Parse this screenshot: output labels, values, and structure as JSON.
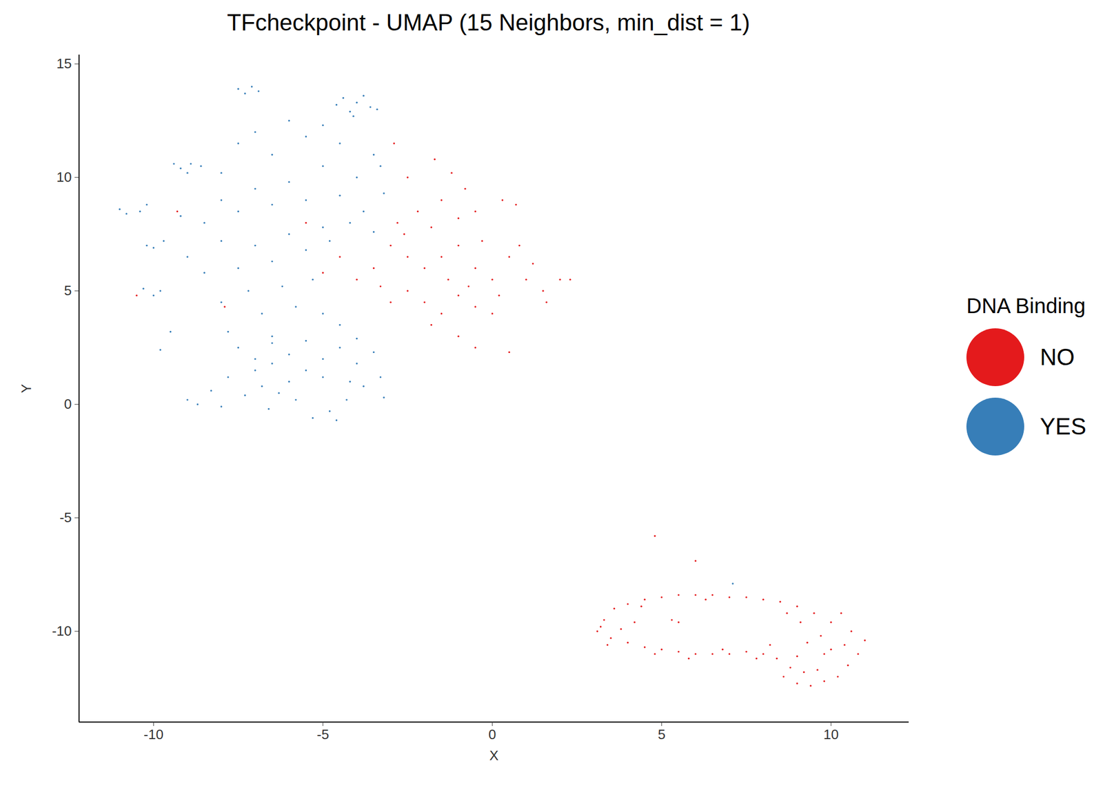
{
  "chart_data": {
    "type": "scatter",
    "title": "TFcheckpoint - UMAP (15 Neighbors, min_dist = 1)",
    "x_label": "X",
    "y_label": "Y",
    "legend_title": "DNA Binding",
    "legend": "right",
    "grid": false,
    "xlim": [
      -12.2,
      12.3
    ],
    "ylim": [
      -14.0,
      15.4
    ],
    "xticks": [
      -10,
      -5,
      0,
      5,
      10
    ],
    "yticks": [
      -10,
      -5,
      0,
      5,
      10,
      15
    ],
    "series": [
      {
        "name": "NO",
        "color": "#E41A1C",
        "points": [
          [
            -3.0,
            7.0
          ],
          [
            -2.5,
            6.5
          ],
          [
            -2.0,
            6.0
          ],
          [
            -1.5,
            6.5
          ],
          [
            -1.0,
            7.0
          ],
          [
            -0.5,
            6.0
          ],
          [
            0.0,
            5.5
          ],
          [
            0.5,
            6.5
          ],
          [
            1.0,
            5.5
          ],
          [
            1.5,
            5.0
          ],
          [
            2.0,
            5.5
          ],
          [
            2.3,
            5.5
          ],
          [
            -2.8,
            8.0
          ],
          [
            -2.2,
            8.5
          ],
          [
            -1.5,
            9.0
          ],
          [
            -1.0,
            8.2
          ],
          [
            -0.5,
            8.5
          ],
          [
            0.3,
            9.0
          ],
          [
            0.7,
            8.8
          ],
          [
            -2.5,
            10.0
          ],
          [
            -1.7,
            10.8
          ],
          [
            -1.2,
            10.2
          ],
          [
            -0.8,
            9.5
          ],
          [
            -2.9,
            11.5
          ],
          [
            -3.5,
            6.0
          ],
          [
            -4.0,
            5.5
          ],
          [
            -4.5,
            6.5
          ],
          [
            -5.0,
            5.8
          ],
          [
            -5.5,
            8.0
          ],
          [
            -2.5,
            5.0
          ],
          [
            -2.0,
            4.5
          ],
          [
            -1.5,
            4.0
          ],
          [
            -1.0,
            4.8
          ],
          [
            -0.5,
            4.3
          ],
          [
            0.0,
            4.0
          ],
          [
            -1.0,
            3.0
          ],
          [
            -0.5,
            2.5
          ],
          [
            0.5,
            2.3
          ],
          [
            -1.8,
            3.5
          ],
          [
            -3.0,
            4.5
          ],
          [
            -1.3,
            5.5
          ],
          [
            -0.3,
            7.2
          ],
          [
            0.8,
            7.0
          ],
          [
            1.2,
            6.2
          ],
          [
            -3.3,
            5.2
          ],
          [
            -2.6,
            7.5
          ],
          [
            -1.8,
            7.8
          ],
          [
            -0.7,
            5.2
          ],
          [
            0.2,
            4.8
          ],
          [
            1.6,
            4.5
          ],
          [
            -9.3,
            8.5
          ],
          [
            -10.5,
            4.8
          ],
          [
            -7.9,
            4.3
          ],
          [
            3.3,
            -9.5
          ],
          [
            3.6,
            -9.0
          ],
          [
            4.0,
            -8.8
          ],
          [
            4.5,
            -8.6
          ],
          [
            5.0,
            -8.5
          ],
          [
            5.5,
            -8.4
          ],
          [
            6.0,
            -8.4
          ],
          [
            6.5,
            -8.4
          ],
          [
            7.0,
            -8.5
          ],
          [
            7.5,
            -8.5
          ],
          [
            8.0,
            -8.6
          ],
          [
            8.5,
            -8.7
          ],
          [
            9.0,
            -8.9
          ],
          [
            9.5,
            -9.2
          ],
          [
            10.0,
            -9.6
          ],
          [
            10.3,
            -9.2
          ],
          [
            10.6,
            -10.0
          ],
          [
            11.0,
            -10.4
          ],
          [
            10.8,
            -11.0
          ],
          [
            10.5,
            -11.5
          ],
          [
            10.2,
            -12.0
          ],
          [
            9.8,
            -12.2
          ],
          [
            9.4,
            -12.4
          ],
          [
            9.0,
            -12.3
          ],
          [
            8.6,
            -12.0
          ],
          [
            8.8,
            -11.6
          ],
          [
            9.2,
            -11.8
          ],
          [
            9.6,
            -11.7
          ],
          [
            9.0,
            -11.1
          ],
          [
            8.4,
            -11.2
          ],
          [
            8.0,
            -11.0
          ],
          [
            7.5,
            -10.9
          ],
          [
            7.0,
            -11.0
          ],
          [
            6.5,
            -11.0
          ],
          [
            6.0,
            -11.0
          ],
          [
            5.5,
            -10.9
          ],
          [
            5.0,
            -10.8
          ],
          [
            4.5,
            -10.7
          ],
          [
            4.0,
            -10.5
          ],
          [
            3.5,
            -10.3
          ],
          [
            3.1,
            -10.0
          ],
          [
            3.4,
            -10.6
          ],
          [
            3.8,
            -9.9
          ],
          [
            4.2,
            -9.6
          ],
          [
            3.2,
            -9.8
          ],
          [
            4.8,
            -11.0
          ],
          [
            5.8,
            -11.2
          ],
          [
            6.8,
            -10.8
          ],
          [
            7.8,
            -11.2
          ],
          [
            8.2,
            -10.6
          ],
          [
            9.3,
            -10.5
          ],
          [
            9.7,
            -10.2
          ],
          [
            10.0,
            -10.8
          ],
          [
            10.4,
            -10.6
          ],
          [
            9.8,
            -11.0
          ],
          [
            9.1,
            -9.6
          ],
          [
            8.7,
            -9.2
          ],
          [
            6.3,
            -8.6
          ],
          [
            4.4,
            -8.9
          ],
          [
            5.3,
            -9.5
          ],
          [
            5.5,
            -9.6
          ],
          [
            4.8,
            -5.8
          ],
          [
            6.0,
            -6.9
          ]
        ]
      },
      {
        "name": "YES",
        "color": "#377EB8",
        "points": [
          [
            -4.4,
            13.5
          ],
          [
            -4.0,
            13.3
          ],
          [
            -3.6,
            13.1
          ],
          [
            -4.2,
            12.9
          ],
          [
            -3.8,
            13.6
          ],
          [
            -4.6,
            13.2
          ],
          [
            -3.4,
            13.0
          ],
          [
            -4.1,
            12.7
          ],
          [
            -7.5,
            13.9
          ],
          [
            -7.1,
            14.0
          ],
          [
            -7.3,
            13.7
          ],
          [
            -6.9,
            13.8
          ],
          [
            -9.2,
            10.4
          ],
          [
            -8.9,
            10.6
          ],
          [
            -9.0,
            10.2
          ],
          [
            -8.6,
            10.5
          ],
          [
            -9.4,
            10.6
          ],
          [
            -11.0,
            8.6
          ],
          [
            -10.8,
            8.4
          ],
          [
            -10.4,
            8.5
          ],
          [
            -10.2,
            8.8
          ],
          [
            -10.2,
            7.0
          ],
          [
            -10.0,
            6.9
          ],
          [
            -9.7,
            7.2
          ],
          [
            -10.3,
            5.1
          ],
          [
            -10.0,
            4.8
          ],
          [
            -9.8,
            5.0
          ],
          [
            -8.0,
            10.2
          ],
          [
            -7.5,
            11.5
          ],
          [
            -7.0,
            12.0
          ],
          [
            -6.5,
            11.0
          ],
          [
            -6.0,
            12.5
          ],
          [
            -5.5,
            11.8
          ],
          [
            -5.0,
            12.3
          ],
          [
            -4.5,
            11.5
          ],
          [
            -3.5,
            11.0
          ],
          [
            -3.3,
            10.5
          ],
          [
            -4.0,
            10.0
          ],
          [
            -5.0,
            10.5
          ],
          [
            -6.0,
            9.8
          ],
          [
            -7.0,
            9.5
          ],
          [
            -8.0,
            9.0
          ],
          [
            -8.5,
            8.0
          ],
          [
            -9.2,
            8.3
          ],
          [
            -7.5,
            8.5
          ],
          [
            -6.5,
            8.8
          ],
          [
            -5.5,
            9.0
          ],
          [
            -4.5,
            9.2
          ],
          [
            -3.8,
            8.5
          ],
          [
            -3.2,
            9.3
          ],
          [
            -4.2,
            8.0
          ],
          [
            -5.0,
            7.8
          ],
          [
            -6.0,
            7.5
          ],
          [
            -7.0,
            7.0
          ],
          [
            -8.0,
            7.2
          ],
          [
            -9.0,
            6.5
          ],
          [
            -8.5,
            5.8
          ],
          [
            -7.5,
            6.0
          ],
          [
            -6.5,
            6.3
          ],
          [
            -5.5,
            6.8
          ],
          [
            -4.8,
            7.2
          ],
          [
            -3.5,
            7.6
          ],
          [
            -7.2,
            5.0
          ],
          [
            -6.2,
            5.2
          ],
          [
            -5.3,
            5.5
          ],
          [
            -8.0,
            4.5
          ],
          [
            -6.8,
            4.0
          ],
          [
            -5.8,
            4.3
          ],
          [
            -5.0,
            4.0
          ],
          [
            -4.5,
            3.5
          ],
          [
            -9.5,
            3.2
          ],
          [
            -9.8,
            2.4
          ],
          [
            -7.8,
            3.2
          ],
          [
            -6.5,
            3.0
          ],
          [
            -7.5,
            2.5
          ],
          [
            -7.0,
            2.0
          ],
          [
            -6.5,
            1.8
          ],
          [
            -6.0,
            2.2
          ],
          [
            -5.5,
            1.5
          ],
          [
            -5.0,
            2.0
          ],
          [
            -4.5,
            2.5
          ],
          [
            -4.0,
            1.8
          ],
          [
            -3.5,
            2.3
          ],
          [
            -3.3,
            1.2
          ],
          [
            -3.8,
            0.8
          ],
          [
            -4.3,
            0.2
          ],
          [
            -4.8,
            -0.3
          ],
          [
            -5.3,
            -0.6
          ],
          [
            -5.8,
            0.2
          ],
          [
            -6.3,
            0.5
          ],
          [
            -6.8,
            0.8
          ],
          [
            -7.3,
            0.4
          ],
          [
            -7.8,
            1.2
          ],
          [
            -8.3,
            0.6
          ],
          [
            -8.7,
            0.0
          ],
          [
            -9.0,
            0.2
          ],
          [
            -8.0,
            -0.1
          ],
          [
            -7.0,
            1.5
          ],
          [
            -6.0,
            1.0
          ],
          [
            -5.0,
            1.2
          ],
          [
            -4.2,
            1.0
          ],
          [
            -5.5,
            2.8
          ],
          [
            -6.5,
            2.7
          ],
          [
            -4.0,
            2.9
          ],
          [
            -3.2,
            0.3
          ],
          [
            -6.6,
            -0.2
          ],
          [
            -4.6,
            -0.7
          ],
          [
            7.1,
            -7.9
          ]
        ]
      }
    ]
  }
}
